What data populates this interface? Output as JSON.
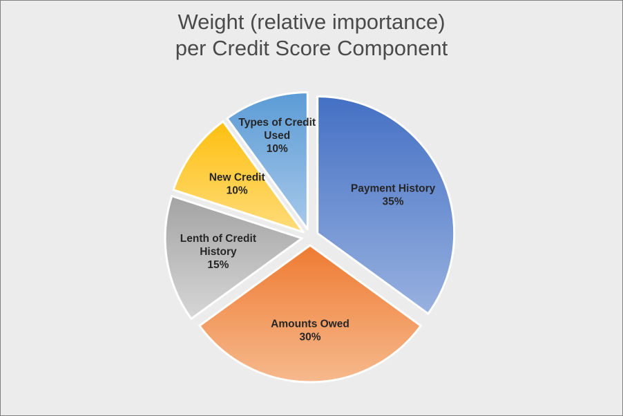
{
  "chart_data": {
    "type": "pie",
    "title_lines": [
      "Weight (relative importance)",
      "per Credit Score Component"
    ],
    "slices": [
      {
        "label_lines": [
          "Payment History"
        ],
        "value_label": "35%",
        "value": 35,
        "color_top": "#4470c4",
        "color_bottom": "#98b1df"
      },
      {
        "label_lines": [
          "Amounts Owed"
        ],
        "value_label": "30%",
        "value": 30,
        "color_top": "#ee7b32",
        "color_bottom": "#f6b98d"
      },
      {
        "label_lines": [
          "Lenth of Credit",
          "History"
        ],
        "value_label": "15%",
        "value": 15,
        "color_top": "#a3a3a3",
        "color_bottom": "#d6d6d6"
      },
      {
        "label_lines": [
          "New Credit"
        ],
        "value_label": "10%",
        "value": 10,
        "color_top": "#fdbf0f",
        "color_bottom": "#ffdc7a"
      },
      {
        "label_lines": [
          "Types of Credit",
          "Used"
        ],
        "value_label": "10%",
        "value": 10,
        "color_top": "#5b9bd5",
        "color_bottom": "#a7c8ea"
      }
    ],
    "legend": "none",
    "exploded": true
  }
}
